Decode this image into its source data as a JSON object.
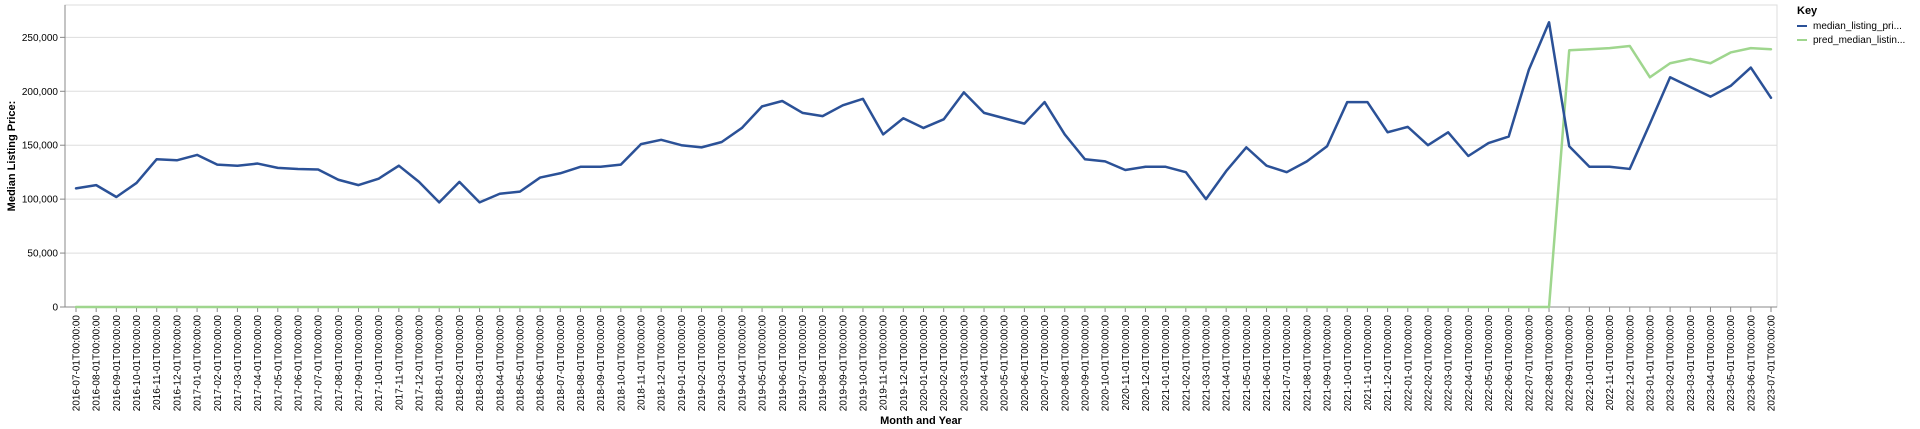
{
  "chart_data": {
    "type": "line",
    "xlabel": "Month and Year",
    "ylabel": "Median Listing Price:",
    "ylim": [
      0,
      280000
    ],
    "yticks": [
      0,
      50000,
      100000,
      150000,
      200000,
      250000
    ],
    "ytick_labels": [
      "0",
      "50,000",
      "100,000",
      "150,000",
      "200,000",
      "250,000"
    ],
    "grid": "horizontal",
    "legend_title": "Key",
    "legend_position": "top-right",
    "categories": [
      "2016-07-01T00:00:00",
      "2016-08-01T00:00:00",
      "2016-09-01T00:00:00",
      "2016-10-01T00:00:00",
      "2016-11-01T00:00:00",
      "2016-12-01T00:00:00",
      "2017-01-01T00:00:00",
      "2017-02-01T00:00:00",
      "2017-03-01T00:00:00",
      "2017-04-01T00:00:00",
      "2017-05-01T00:00:00",
      "2017-06-01T00:00:00",
      "2017-07-01T00:00:00",
      "2017-08-01T00:00:00",
      "2017-09-01T00:00:00",
      "2017-10-01T00:00:00",
      "2017-11-01T00:00:00",
      "2017-12-01T00:00:00",
      "2018-01-01T00:00:00",
      "2018-02-01T00:00:00",
      "2018-03-01T00:00:00",
      "2018-04-01T00:00:00",
      "2018-05-01T00:00:00",
      "2018-06-01T00:00:00",
      "2018-07-01T00:00:00",
      "2018-08-01T00:00:00",
      "2018-09-01T00:00:00",
      "2018-10-01T00:00:00",
      "2018-11-01T00:00:00",
      "2018-12-01T00:00:00",
      "2019-01-01T00:00:00",
      "2019-02-01T00:00:00",
      "2019-03-01T00:00:00",
      "2019-04-01T00:00:00",
      "2019-05-01T00:00:00",
      "2019-06-01T00:00:00",
      "2019-07-01T00:00:00",
      "2019-08-01T00:00:00",
      "2019-09-01T00:00:00",
      "2019-10-01T00:00:00",
      "2019-11-01T00:00:00",
      "2019-12-01T00:00:00",
      "2020-01-01T00:00:00",
      "2020-02-01T00:00:00",
      "2020-03-01T00:00:00",
      "2020-04-01T00:00:00",
      "2020-05-01T00:00:00",
      "2020-06-01T00:00:00",
      "2020-07-01T00:00:00",
      "2020-08-01T00:00:00",
      "2020-09-01T00:00:00",
      "2020-10-01T00:00:00",
      "2020-11-01T00:00:00",
      "2020-12-01T00:00:00",
      "2021-01-01T00:00:00",
      "2021-02-01T00:00:00",
      "2021-03-01T00:00:00",
      "2021-04-01T00:00:00",
      "2021-05-01T00:00:00",
      "2021-06-01T00:00:00",
      "2021-07-01T00:00:00",
      "2021-08-01T00:00:00",
      "2021-09-01T00:00:00",
      "2021-10-01T00:00:00",
      "2021-11-01T00:00:00",
      "2021-12-01T00:00:00",
      "2022-01-01T00:00:00",
      "2022-02-01T00:00:00",
      "2022-03-01T00:00:00",
      "2022-04-01T00:00:00",
      "2022-05-01T00:00:00",
      "2022-06-01T00:00:00",
      "2022-07-01T00:00:00",
      "2022-08-01T00:00:00",
      "2022-09-01T00:00:00",
      "2022-10-01T00:00:00",
      "2022-11-01T00:00:00",
      "2022-12-01T00:00:00",
      "2023-01-01T00:00:00",
      "2023-02-01T00:00:00",
      "2023-03-01T00:00:00",
      "2023-04-01T00:00:00",
      "2023-05-01T00:00:00",
      "2023-06-01T00:00:00",
      "2023-07-01T00:00:00"
    ],
    "series": [
      {
        "name": "median_listing_pri...",
        "color": "#2b5197",
        "values": [
          110000,
          113000,
          102000,
          115000,
          137000,
          136000,
          141000,
          132000,
          131000,
          133000,
          129000,
          128000,
          127500,
          118000,
          113000,
          119000,
          131000,
          116000,
          97000,
          116000,
          97000,
          105000,
          107000,
          120000,
          124000,
          130000,
          130000,
          132000,
          151000,
          155000,
          150000,
          148000,
          153000,
          166000,
          186000,
          191000,
          180000,
          177000,
          187000,
          193000,
          160000,
          175000,
          166000,
          174000,
          199000,
          180000,
          175000,
          170000,
          190000,
          160000,
          137000,
          135000,
          127000,
          130000,
          130000,
          125000,
          100000,
          126000,
          148000,
          131000,
          125000,
          135000,
          149000,
          190000,
          190000,
          162000,
          167000,
          150000,
          162000,
          140000,
          152000,
          158000,
          220000,
          264000,
          149000,
          130000,
          130000,
          128000,
          170000,
          213000,
          204000,
          195000,
          205000,
          222000,
          194000
        ]
      },
      {
        "name": "pred_median_listin...",
        "color": "#9fd68e",
        "values": [
          0,
          0,
          0,
          0,
          0,
          0,
          0,
          0,
          0,
          0,
          0,
          0,
          0,
          0,
          0,
          0,
          0,
          0,
          0,
          0,
          0,
          0,
          0,
          0,
          0,
          0,
          0,
          0,
          0,
          0,
          0,
          0,
          0,
          0,
          0,
          0,
          0,
          0,
          0,
          0,
          0,
          0,
          0,
          0,
          0,
          0,
          0,
          0,
          0,
          0,
          0,
          0,
          0,
          0,
          0,
          0,
          0,
          0,
          0,
          0,
          0,
          0,
          0,
          0,
          0,
          0,
          0,
          0,
          0,
          0,
          0,
          0,
          0,
          0,
          238000,
          239000,
          240000,
          242000,
          213000,
          226000,
          230000,
          226000,
          236000,
          240000,
          239000
        ]
      }
    ]
  }
}
